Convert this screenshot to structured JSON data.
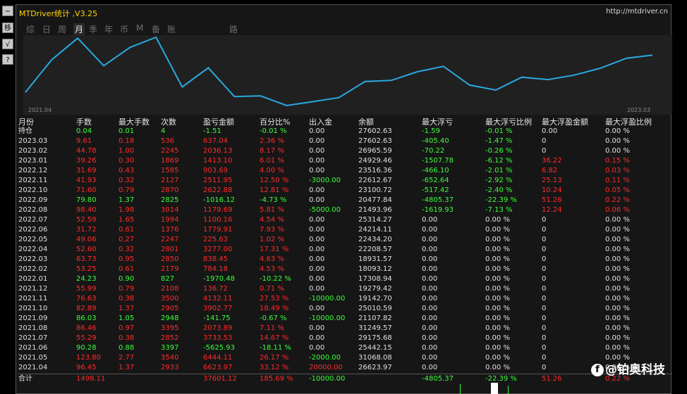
{
  "window": {
    "title": "MTDriver统计 ,V3.25",
    "site": "http://mtdriver.cn"
  },
  "toolbar": [
    {
      "name": "minimize-button",
      "glyph": "−"
    },
    {
      "name": "move-button",
      "glyph": "移"
    },
    {
      "name": "check-button",
      "glyph": "√"
    },
    {
      "name": "help-button",
      "glyph": "?"
    }
  ],
  "tabs": [
    "综",
    "日",
    "周",
    "月",
    "季",
    "年",
    "币",
    "M",
    "备",
    "账户",
    "路径"
  ],
  "active_tab": "月",
  "chart": {
    "start_label": "2021.04",
    "end_label": "2023.03",
    "line_color": "#29a8e0"
  },
  "table": {
    "headers": [
      "月份",
      "手数",
      "最大手数",
      "次数",
      "盈亏金额",
      "百分比%",
      "出入金",
      "余额",
      "最大浮亏",
      "最大浮亏比例",
      "最大浮盈金额",
      "最大浮盈比例"
    ],
    "rows": [
      {
        "c": [
          "持仓",
          "0.04",
          "0.01",
          "4",
          "-1.51",
          "-0.01 %",
          "0.00",
          "27602.63",
          "-1.59",
          "-0.01 %",
          "0.00",
          "0.00 %"
        ],
        "k": [
          "w",
          "g",
          "g",
          "g",
          "g",
          "g",
          "w",
          "w",
          "g",
          "g",
          "w",
          "w"
        ]
      },
      {
        "c": [
          "2023.03",
          "9.61",
          "0.18",
          "536",
          "637.04",
          "2.36 %",
          "0.00",
          "27602.63",
          "-405.40",
          "-1.47 %",
          "0",
          "0.00 %"
        ],
        "k": [
          "w",
          "r",
          "r",
          "r",
          "r",
          "r",
          "w",
          "w",
          "g",
          "g",
          "w",
          "w"
        ]
      },
      {
        "c": [
          "2023.02",
          "44.78",
          "1.00",
          "2245",
          "2036.13",
          "8.17 %",
          "0.00",
          "26965.59",
          "-70.22",
          "-0.26 %",
          "0",
          "0.00 %"
        ],
        "k": [
          "w",
          "r",
          "r",
          "r",
          "r",
          "r",
          "w",
          "w",
          "g",
          "g",
          "w",
          "w"
        ]
      },
      {
        "c": [
          "2023.01",
          "39.26",
          "0.30",
          "1869",
          "1413.10",
          "6.01 %",
          "0.00",
          "24929.46",
          "-1507.78",
          "-6.12 %",
          "36.22",
          "0.15 %"
        ],
        "k": [
          "w",
          "r",
          "r",
          "r",
          "r",
          "r",
          "w",
          "w",
          "g",
          "g",
          "r",
          "r"
        ]
      },
      {
        "c": [
          "2022.12",
          "31.69",
          "0.43",
          "1585",
          "903.69",
          "4.00 %",
          "0.00",
          "23516.36",
          "-466.10",
          "-2.01 %",
          "6.82",
          "0.03 %"
        ],
        "k": [
          "w",
          "r",
          "r",
          "r",
          "r",
          "r",
          "w",
          "w",
          "g",
          "g",
          "r",
          "r"
        ]
      },
      {
        "c": [
          "2022.11",
          "41.93",
          "0.32",
          "2127",
          "2511.95",
          "12.50 %",
          "-3000.00",
          "22612.67",
          "-652.64",
          "-2.92 %",
          "25.13",
          "0.11 %"
        ],
        "k": [
          "w",
          "r",
          "r",
          "r",
          "r",
          "r",
          "g",
          "w",
          "g",
          "g",
          "r",
          "r"
        ]
      },
      {
        "c": [
          "2022.10",
          "71.60",
          "0.79",
          "2870",
          "2622.88",
          "12.81 %",
          "0.00",
          "23100.72",
          "-517.42",
          "-2.40 %",
          "10.24",
          "0.05 %"
        ],
        "k": [
          "w",
          "r",
          "r",
          "r",
          "r",
          "r",
          "w",
          "w",
          "g",
          "g",
          "r",
          "r"
        ]
      },
      {
        "c": [
          "2022.09",
          "79.80",
          "1.37",
          "2825",
          "-1016.12",
          "-4.73 %",
          "0.00",
          "20477.84",
          "-4805.37",
          "-22.39 %",
          "51.26",
          "0.22 %"
        ],
        "k": [
          "w",
          "g",
          "g",
          "g",
          "g",
          "g",
          "w",
          "w",
          "g",
          "g",
          "r",
          "r"
        ]
      },
      {
        "c": [
          "2022.08",
          "98.40",
          "1.98",
          "3014",
          "1179.69",
          "5.81 %",
          "-5000.00",
          "21493.96",
          "-1619.93",
          "-7.13 %",
          "12.24",
          "0.06 %"
        ],
        "k": [
          "w",
          "r",
          "r",
          "r",
          "r",
          "r",
          "g",
          "w",
          "g",
          "g",
          "r",
          "r"
        ]
      },
      {
        "c": [
          "2022.07",
          "52.59",
          "1.65",
          "1994",
          "1100.16",
          "4.54 %",
          "0.00",
          "25314.27",
          "0.00",
          "0.00 %",
          "0",
          "0.00 %"
        ],
        "k": [
          "w",
          "r",
          "r",
          "r",
          "r",
          "r",
          "w",
          "w",
          "w",
          "w",
          "w",
          "w"
        ]
      },
      {
        "c": [
          "2022.06",
          "31.72",
          "0.61",
          "1376",
          "1779.91",
          "7.93 %",
          "0.00",
          "24214.11",
          "0.00",
          "0.00 %",
          "0",
          "0.00 %"
        ],
        "k": [
          "w",
          "r",
          "r",
          "r",
          "r",
          "r",
          "w",
          "w",
          "w",
          "w",
          "w",
          "w"
        ]
      },
      {
        "c": [
          "2022.05",
          "49.06",
          "0.27",
          "2247",
          "225.63",
          "1.02 %",
          "0.00",
          "22434.20",
          "0.00",
          "0.00 %",
          "0",
          "0.00 %"
        ],
        "k": [
          "w",
          "r",
          "r",
          "r",
          "r",
          "r",
          "w",
          "w",
          "w",
          "w",
          "w",
          "w"
        ]
      },
      {
        "c": [
          "2022.04",
          "52.60",
          "0.32",
          "2801",
          "3277.00",
          "17.31 %",
          "0.00",
          "22208.57",
          "0.00",
          "0.00 %",
          "0",
          "0.00 %"
        ],
        "k": [
          "w",
          "r",
          "r",
          "r",
          "r",
          "r",
          "w",
          "w",
          "w",
          "w",
          "w",
          "w"
        ]
      },
      {
        "c": [
          "2022.03",
          "63.73",
          "0.95",
          "2850",
          "838.45",
          "4.63 %",
          "0.00",
          "18931.57",
          "0.00",
          "0.00 %",
          "0",
          "0.00 %"
        ],
        "k": [
          "w",
          "r",
          "r",
          "r",
          "r",
          "r",
          "w",
          "w",
          "w",
          "w",
          "w",
          "w"
        ]
      },
      {
        "c": [
          "2022.02",
          "53.25",
          "0.61",
          "2179",
          "784.18",
          "4.53 %",
          "0.00",
          "18093.12",
          "0.00",
          "0.00 %",
          "0",
          "0.00 %"
        ],
        "k": [
          "w",
          "r",
          "r",
          "r",
          "r",
          "r",
          "w",
          "w",
          "w",
          "w",
          "w",
          "w"
        ]
      },
      {
        "c": [
          "2022.01",
          "24.23",
          "0.90",
          "827",
          "-1970.48",
          "-10.22 %",
          "0.00",
          "17308.94",
          "0.00",
          "0.00 %",
          "0",
          "0.00 %"
        ],
        "k": [
          "w",
          "g",
          "g",
          "g",
          "g",
          "g",
          "w",
          "w",
          "w",
          "w",
          "w",
          "w"
        ]
      },
      {
        "c": [
          "2021.12",
          "55.99",
          "0.79",
          "2108",
          "136.72",
          "0.71 %",
          "0.00",
          "19279.42",
          "0.00",
          "0.00 %",
          "0",
          "0.00 %"
        ],
        "k": [
          "w",
          "r",
          "r",
          "r",
          "r",
          "r",
          "w",
          "w",
          "w",
          "w",
          "w",
          "w"
        ]
      },
      {
        "c": [
          "2021.11",
          "76.63",
          "0.38",
          "3500",
          "4132.11",
          "27.53 %",
          "-10000.00",
          "19142.70",
          "0.00",
          "0.00 %",
          "0",
          "0.00 %"
        ],
        "k": [
          "w",
          "r",
          "r",
          "r",
          "r",
          "r",
          "g",
          "w",
          "w",
          "w",
          "w",
          "w"
        ]
      },
      {
        "c": [
          "2021.10",
          "82.89",
          "1.37",
          "2905",
          "3902.77",
          "18.49 %",
          "0.00",
          "25010.59",
          "0.00",
          "0.00 %",
          "0",
          "0.00 %"
        ],
        "k": [
          "w",
          "r",
          "r",
          "r",
          "r",
          "r",
          "w",
          "w",
          "w",
          "w",
          "w",
          "w"
        ]
      },
      {
        "c": [
          "2021.09",
          "86.03",
          "1.05",
          "2948",
          "-141.75",
          "-0.67 %",
          "-10000.00",
          "21107.82",
          "0.00",
          "0.00 %",
          "0",
          "0.00 %"
        ],
        "k": [
          "w",
          "g",
          "g",
          "g",
          "g",
          "g",
          "g",
          "w",
          "w",
          "w",
          "w",
          "w"
        ]
      },
      {
        "c": [
          "2021.08",
          "86.46",
          "0.97",
          "3395",
          "2073.89",
          "7.11 %",
          "0.00",
          "31249.57",
          "0.00",
          "0.00 %",
          "0",
          "0.00 %"
        ],
        "k": [
          "w",
          "r",
          "r",
          "r",
          "r",
          "r",
          "w",
          "w",
          "w",
          "w",
          "w",
          "w"
        ]
      },
      {
        "c": [
          "2021.07",
          "55.29",
          "0.38",
          "2852",
          "3733.53",
          "14.67 %",
          "0.00",
          "29175.68",
          "0.00",
          "0.00 %",
          "0",
          "0.00 %"
        ],
        "k": [
          "w",
          "r",
          "r",
          "r",
          "r",
          "r",
          "w",
          "w",
          "w",
          "w",
          "w",
          "w"
        ]
      },
      {
        "c": [
          "2021.06",
          "90.28",
          "0.88",
          "3397",
          "-5625.93",
          "-18.11 %",
          "0.00",
          "25442.15",
          "0.00",
          "0.00 %",
          "0",
          "0.00 %"
        ],
        "k": [
          "w",
          "g",
          "g",
          "g",
          "g",
          "g",
          "w",
          "w",
          "w",
          "w",
          "w",
          "w"
        ]
      },
      {
        "c": [
          "2021.05",
          "123.80",
          "2.77",
          "3540",
          "6444.11",
          "26.17 %",
          "-2000.00",
          "31068.08",
          "0.00",
          "0.00 %",
          "0",
          "0.00 %"
        ],
        "k": [
          "w",
          "r",
          "r",
          "r",
          "r",
          "r",
          "g",
          "w",
          "w",
          "w",
          "w",
          "w"
        ]
      },
      {
        "c": [
          "2021.04",
          "96.45",
          "1.37",
          "2933",
          "6623.97",
          "33.12 %",
          "20000.00",
          "26623.97",
          "0.00",
          "0.00 %",
          "0",
          "0.00 %"
        ],
        "k": [
          "w",
          "r",
          "r",
          "r",
          "r",
          "r",
          "r",
          "w",
          "w",
          "w",
          "w",
          "w"
        ]
      }
    ],
    "total": {
      "c": [
        "合计",
        "1498.11",
        "",
        "",
        "37601.12",
        "185.69 %",
        "-10000.00",
        "",
        "-4805.37",
        "-22.39 %",
        "51.26",
        "0.22 %"
      ],
      "k": [
        "w",
        "r",
        "w",
        "w",
        "r",
        "r",
        "g",
        "w",
        "g",
        "g",
        "r",
        "r"
      ]
    }
  },
  "watermark": {
    "icon": "f",
    "text": "@铂奥科技"
  },
  "colors": {
    "profit": "#ff2a2a",
    "loss": "#3cff3c",
    "neutral": "#e0e0e0",
    "title": "#ffd400"
  }
}
